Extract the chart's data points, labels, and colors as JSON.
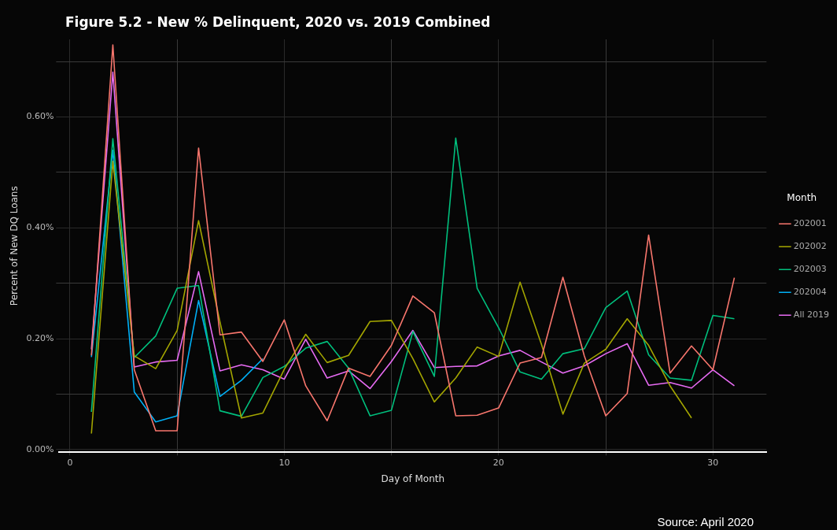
{
  "chart_data": {
    "type": "line",
    "title": "Figure 5.2 - New % Delinquent, 2020 vs. 2019 Combined",
    "xlabel": "Day of Month",
    "ylabel": "Percent of New DQ Loans",
    "legend_title": "Month",
    "legend": "right",
    "grid": true,
    "marker": "none",
    "line_style": "solid",
    "x": [
      1,
      2,
      3,
      4,
      5,
      6,
      7,
      8,
      9,
      10,
      11,
      12,
      13,
      14,
      15,
      16,
      17,
      18,
      19,
      20,
      21,
      22,
      23,
      24,
      25,
      26,
      27,
      28,
      29,
      30,
      31
    ],
    "xlim": [
      -0.5,
      32.5
    ],
    "xticks": [
      0,
      {
        "value": 5,
        "label": null
      },
      10,
      {
        "value": 15,
        "label": null
      },
      20,
      {
        "value": 25,
        "label": null
      },
      30
    ],
    "ylim": [
      -0.005,
      0.74
    ],
    "yticks": [
      {
        "value": 0,
        "label": "0.00%"
      },
      {
        "value": 0.1,
        "label": null
      },
      {
        "value": 0.2,
        "label": "0.20%"
      },
      {
        "value": 0.3,
        "label": null
      },
      {
        "value": 0.4,
        "label": "0.40%"
      },
      {
        "value": 0.5,
        "label": null
      },
      {
        "value": 0.6,
        "label": "0.60%"
      },
      {
        "value": 0.7,
        "label": null
      }
    ],
    "series": [
      {
        "name": "202001",
        "color": "#f8766d",
        "values": [
          0.17,
          0.73,
          0.144,
          0.034,
          0.034,
          0.544,
          0.207,
          0.212,
          0.159,
          0.234,
          0.115,
          0.052,
          0.147,
          0.132,
          0.188,
          0.277,
          0.247,
          0.061,
          0.062,
          0.075,
          0.156,
          0.166,
          0.311,
          0.169,
          0.061,
          0.101,
          0.387,
          0.138,
          0.187,
          0.144,
          0.31
        ]
      },
      {
        "name": "202002",
        "color": "#a3a500",
        "values": [
          0.029,
          0.52,
          0.169,
          0.146,
          0.215,
          0.413,
          0.23,
          0.057,
          0.066,
          0.145,
          0.208,
          0.157,
          0.17,
          0.231,
          0.233,
          0.164,
          0.086,
          0.129,
          0.185,
          0.168,
          0.302,
          0.19,
          0.064,
          0.156,
          0.181,
          0.236,
          0.188,
          0.115,
          0.057,
          null,
          null
        ]
      },
      {
        "name": "202003",
        "color": "#00bf7d",
        "values": [
          0.068,
          0.561,
          0.166,
          0.205,
          0.291,
          0.296,
          0.07,
          0.06,
          0.13,
          0.15,
          0.183,
          0.195,
          0.147,
          0.061,
          0.071,
          0.213,
          0.132,
          0.562,
          0.291,
          0.22,
          0.14,
          0.127,
          0.173,
          0.182,
          0.256,
          0.286,
          0.171,
          0.129,
          0.125,
          0.242,
          0.236
        ]
      },
      {
        "name": "202004",
        "color": "#00b0f6",
        "values": [
          0.167,
          0.54,
          0.104,
          0.05,
          0.061,
          0.269,
          0.096,
          0.125,
          0.164,
          null,
          null,
          null,
          null,
          null,
          null,
          null,
          null,
          null,
          null,
          null,
          null,
          null,
          null,
          null,
          null,
          null,
          null,
          null,
          null,
          null,
          null
        ]
      },
      {
        "name": "All 2019",
        "color": "#e76bf3",
        "values": [
          0.181,
          0.681,
          0.149,
          0.158,
          0.161,
          0.321,
          0.142,
          0.153,
          0.144,
          0.127,
          0.199,
          0.129,
          0.142,
          0.11,
          0.159,
          0.215,
          0.148,
          0.15,
          0.151,
          0.169,
          0.179,
          0.158,
          0.138,
          0.151,
          0.173,
          0.191,
          0.116,
          0.121,
          0.111,
          0.144,
          0.115
        ]
      }
    ],
    "annotations": [
      "Source: April 2020"
    ]
  }
}
